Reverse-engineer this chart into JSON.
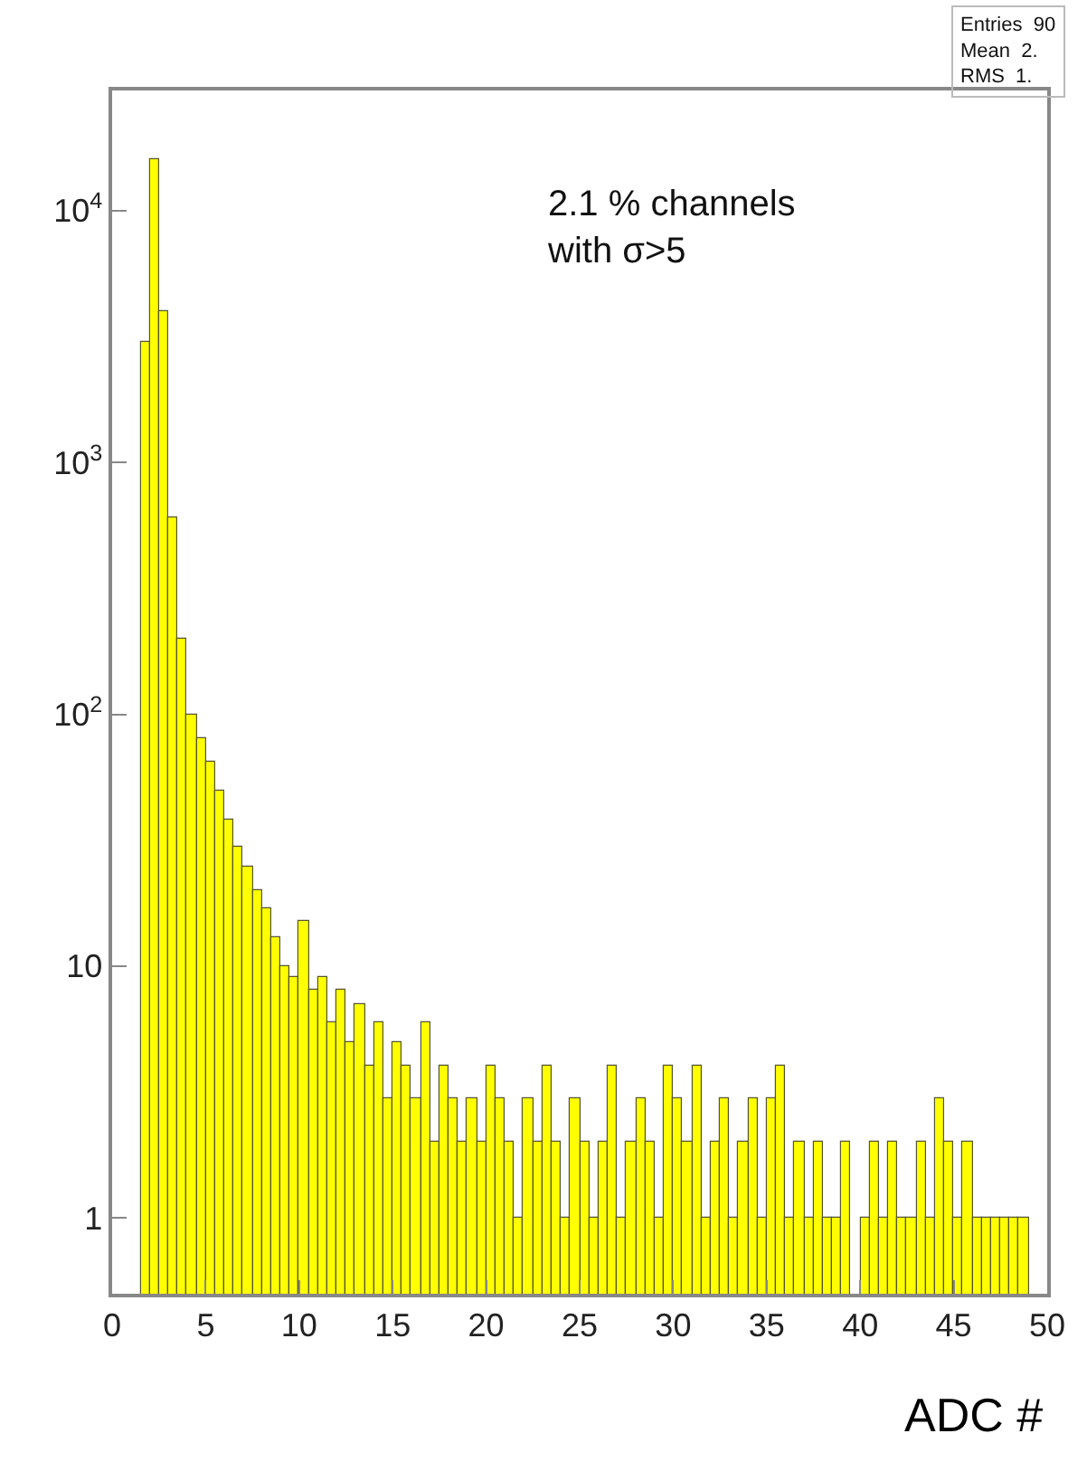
{
  "chart_data": {
    "type": "histogram",
    "xlabel": "ADC #",
    "annotations": [
      "2.1 % channels\nwith σ>5",
      "Entries  90",
      "Mean  2.",
      "RMS  1."
    ],
    "bins": [
      0,
      0.5,
      1,
      1.5,
      2,
      2.5,
      3,
      3.5,
      4,
      4.5,
      5,
      5.5,
      6,
      6.5,
      7,
      7.5,
      8,
      8.5,
      9,
      9.5,
      10,
      10.5,
      11,
      11.5,
      12,
      12.5,
      13,
      13.5,
      14,
      14.5,
      15,
      15.5,
      16,
      16.5,
      17,
      17.5,
      18,
      18.5,
      19,
      19.5,
      20,
      20.5,
      21,
      21.5,
      22,
      22.5,
      23,
      23.5,
      24,
      24.5,
      25,
      25.5,
      26,
      26.5,
      27,
      27.5,
      28,
      28.5,
      29,
      29.5,
      30,
      30.5,
      31,
      31.5,
      32,
      32.5,
      33,
      33.5,
      34,
      34.5,
      35,
      35.5,
      36,
      36.5,
      37,
      37.5,
      38,
      38.5,
      39,
      39.5,
      40,
      40.5,
      41,
      41.5,
      42,
      42.5,
      43,
      43.5,
      44,
      44.5,
      45,
      45.5,
      46,
      46.5,
      47,
      47.5,
      48,
      48.5,
      49,
      49.5,
      50
    ],
    "values": [
      null,
      null,
      null,
      3000,
      16000,
      4000,
      600,
      200,
      100,
      80,
      65,
      50,
      38,
      30,
      25,
      20,
      17,
      13,
      10,
      9,
      15,
      8,
      9,
      6,
      8,
      5,
      7,
      4,
      6,
      3,
      5,
      4,
      3,
      6,
      2,
      4,
      3,
      2,
      3,
      2,
      4,
      3,
      2,
      1,
      3,
      2,
      4,
      2,
      1,
      3,
      2,
      1,
      2,
      4,
      1,
      2,
      3,
      2,
      1,
      4,
      3,
      2,
      4,
      1,
      2,
      3,
      1,
      2,
      3,
      1,
      3,
      4,
      1,
      2,
      1,
      2,
      1,
      1,
      2,
      null,
      1,
      2,
      1,
      2,
      1,
      1,
      2,
      1,
      3,
      2,
      1,
      2,
      1,
      1,
      1,
      1,
      1,
      1,
      null,
      null
    ],
    "color": "#ffff00",
    "xlim": [
      0,
      50
    ],
    "xticks": [
      0,
      5,
      10,
      15,
      20,
      25,
      30,
      35,
      40,
      45,
      50
    ],
    "ylim": [
      0.5,
      30000
    ],
    "yticks": [
      1,
      10,
      {
        "value": 100,
        "label": "10$^{2}$"
      },
      {
        "value": 1000,
        "label": "10$^{3}$"
      },
      {
        "value": 10000,
        "label": "10$^{4}$"
      }
    ],
    "log": "y"
  }
}
